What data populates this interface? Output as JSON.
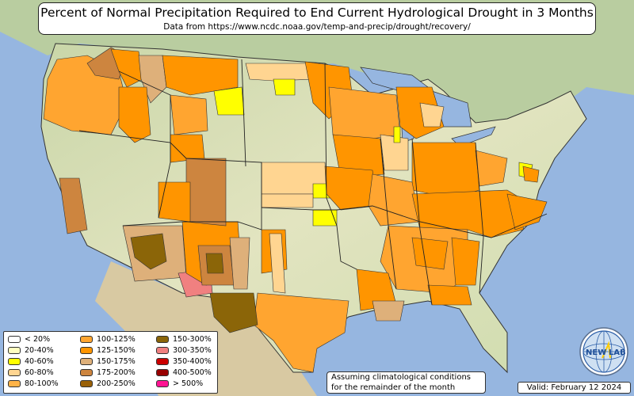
{
  "header": {
    "title": "Percent of Normal Precipitation Required to End Current Hydrological Drought in 3 Months",
    "subtitle": "Data from https://www.ncdc.noaa.gov/temp-and-precip/drought/recovery/"
  },
  "legend": {
    "items": [
      {
        "label": "< 20%",
        "color": "#ffffff"
      },
      {
        "label": "20-40%",
        "color": "#ffffc0"
      },
      {
        "label": "40-60%",
        "color": "#ffff00"
      },
      {
        "label": "60-80%",
        "color": "#ffd591"
      },
      {
        "label": "80-100%",
        "color": "#ffb347"
      },
      {
        "label": "100-125%",
        "color": "#ffa530"
      },
      {
        "label": "125-150%",
        "color": "#ff9500"
      },
      {
        "label": "150-175%",
        "color": "#deb07a"
      },
      {
        "label": "175-200%",
        "color": "#cd853f"
      },
      {
        "label": "200-250%",
        "color": "#9a6108"
      },
      {
        "label": "150-300%",
        "color": "#8b6508"
      },
      {
        "label": "300-350%",
        "color": "#f08080"
      },
      {
        "label": "350-400%",
        "color": "#cc0000"
      },
      {
        "label": "400-500%",
        "color": "#990000"
      },
      {
        "label": "> 500%",
        "color": "#ff1493"
      }
    ]
  },
  "note": {
    "line1": "Assuming climatological conditions",
    "line2": "for the remainder of the month"
  },
  "valid": "Valid: February 12 2024",
  "logo": {
    "text_left": "NEW",
    "text_right": "LAB"
  }
}
